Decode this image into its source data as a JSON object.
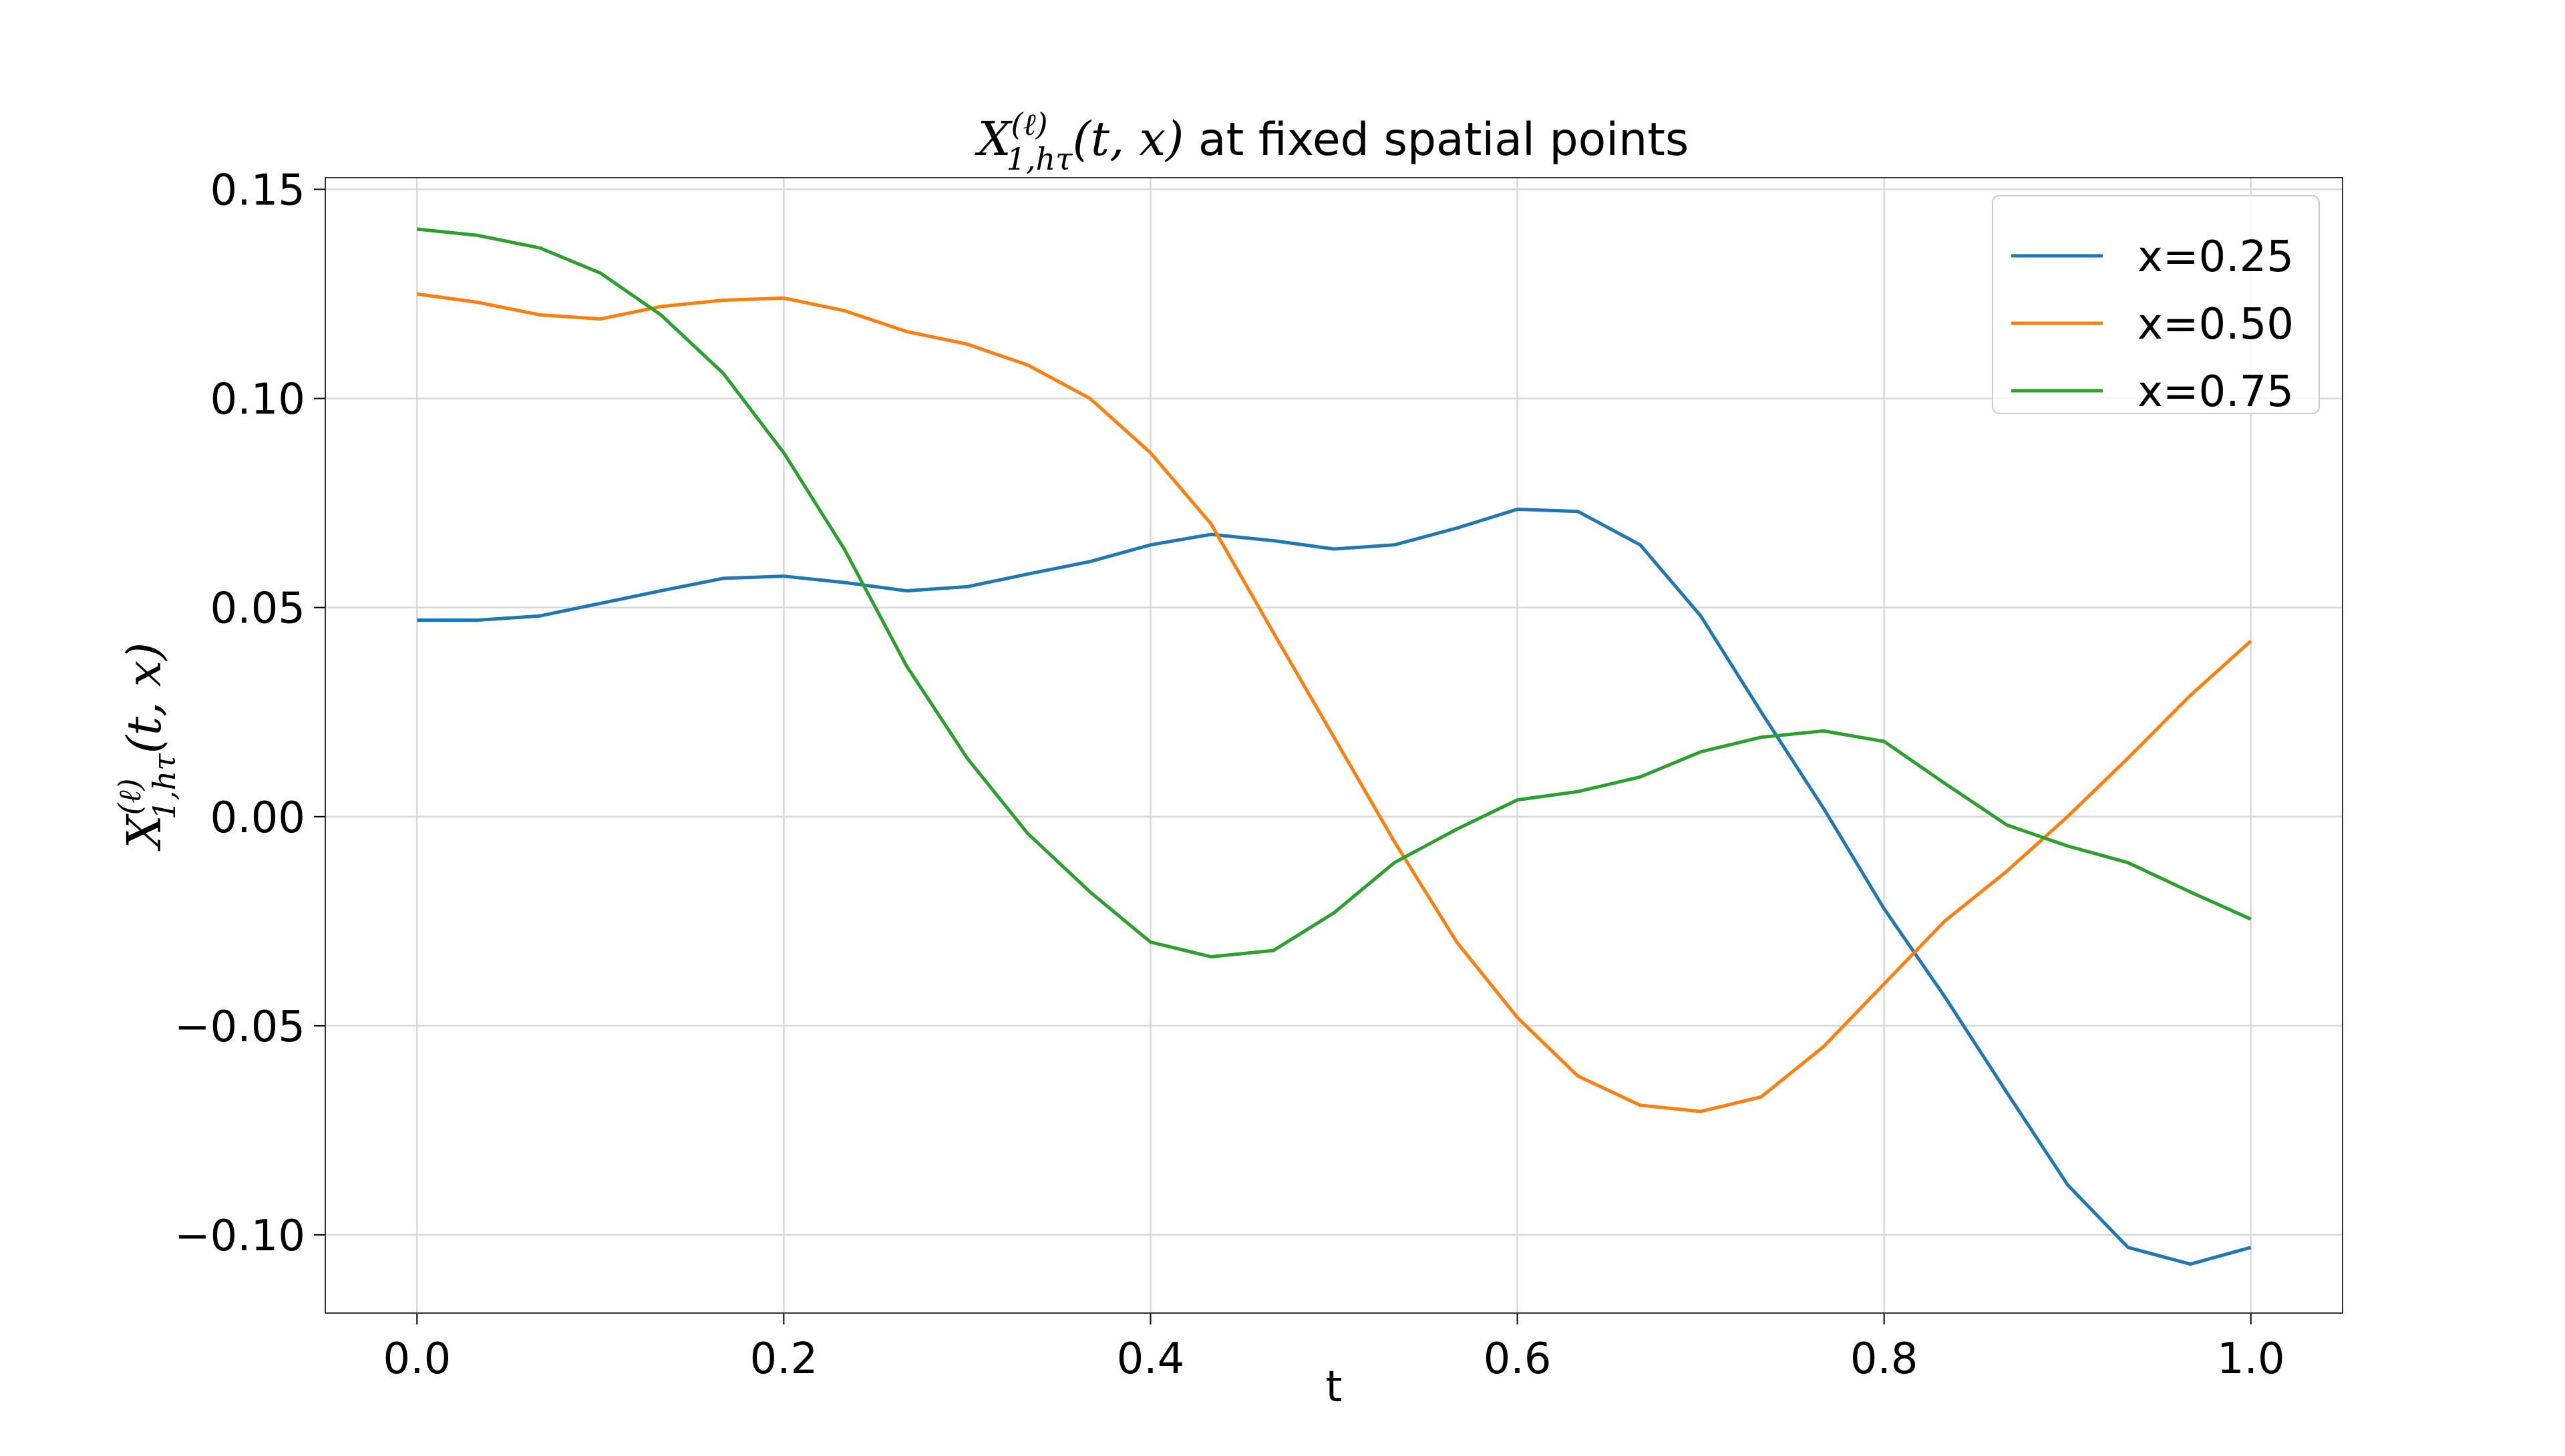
{
  "chart_data": {
    "type": "line",
    "title": {
      "symbol": "X",
      "superscript": "(ℓ)",
      "subscript": "1,hτ",
      "args": "(t, x)",
      "text": " at fixed spatial points"
    },
    "x_label": "t",
    "y_label": {
      "symbol": "X",
      "superscript": "(ℓ)",
      "subscript": "1,hτ",
      "args": "(t, x)"
    },
    "x": [
      0,
      0.033,
      0.067,
      0.1,
      0.133,
      0.167,
      0.2,
      0.233,
      0.267,
      0.3,
      0.333,
      0.367,
      0.4,
      0.433,
      0.467,
      0.5,
      0.533,
      0.567,
      0.6,
      0.633,
      0.667,
      0.7,
      0.733,
      0.767,
      0.8,
      0.833,
      0.867,
      0.9,
      0.933,
      0.967,
      1.0
    ],
    "series": [
      {
        "name": "x=0.25",
        "color": "#1f77b4",
        "values": [
          0.047,
          0.047,
          0.048,
          0.051,
          0.054,
          0.057,
          0.0575,
          0.056,
          0.054,
          0.055,
          0.058,
          0.061,
          0.065,
          0.0675,
          0.066,
          0.064,
          0.065,
          0.069,
          0.0735,
          0.073,
          0.065,
          0.048,
          0.025,
          0.002,
          -0.022,
          -0.043,
          -0.066,
          -0.088,
          -0.103,
          -0.107,
          -0.103
        ]
      },
      {
        "name": "x=0.50",
        "color": "#ff7f0e",
        "values": [
          0.125,
          0.123,
          0.12,
          0.119,
          0.122,
          0.1235,
          0.124,
          0.121,
          0.116,
          0.113,
          0.108,
          0.1,
          0.087,
          0.07,
          0.044,
          0.019,
          -0.006,
          -0.03,
          -0.048,
          -0.062,
          -0.069,
          -0.0705,
          -0.067,
          -0.055,
          -0.04,
          -0.025,
          -0.013,
          0.0,
          0.014,
          0.029,
          0.042
        ]
      },
      {
        "name": "x=0.75",
        "color": "#2ca02c",
        "values": [
          0.1405,
          0.139,
          0.136,
          0.13,
          0.12,
          0.106,
          0.087,
          0.064,
          0.036,
          0.014,
          -0.004,
          -0.018,
          -0.03,
          -0.0335,
          -0.032,
          -0.023,
          -0.011,
          -0.003,
          0.004,
          0.006,
          0.0095,
          0.0155,
          0.019,
          0.0205,
          0.018,
          0.008,
          -0.002,
          -0.007,
          -0.011,
          -0.018,
          -0.0245
        ]
      }
    ],
    "xlim": [
      -0.05,
      1.05
    ],
    "xticks": [
      {
        "value": 0,
        "label": "0.0"
      },
      {
        "value": 0.2,
        "label": "0.2"
      },
      {
        "value": 0.4,
        "label": "0.4"
      },
      {
        "value": 0.6,
        "label": "0.6"
      },
      {
        "value": 0.8,
        "label": "0.8"
      },
      {
        "value": 1,
        "label": "1.0"
      }
    ],
    "ylim": [
      -0.1187,
      0.1528
    ],
    "yticks": [
      {
        "value": -0.1,
        "label": "−0.10"
      },
      {
        "value": -0.05,
        "label": "−0.05"
      },
      {
        "value": 0,
        "label": "0.00"
      },
      {
        "value": 0.05,
        "label": "0.05"
      },
      {
        "value": 0.1,
        "label": "0.10"
      },
      {
        "value": 0.15,
        "label": "0.15"
      }
    ],
    "grid": true,
    "legend": "upper right"
  }
}
